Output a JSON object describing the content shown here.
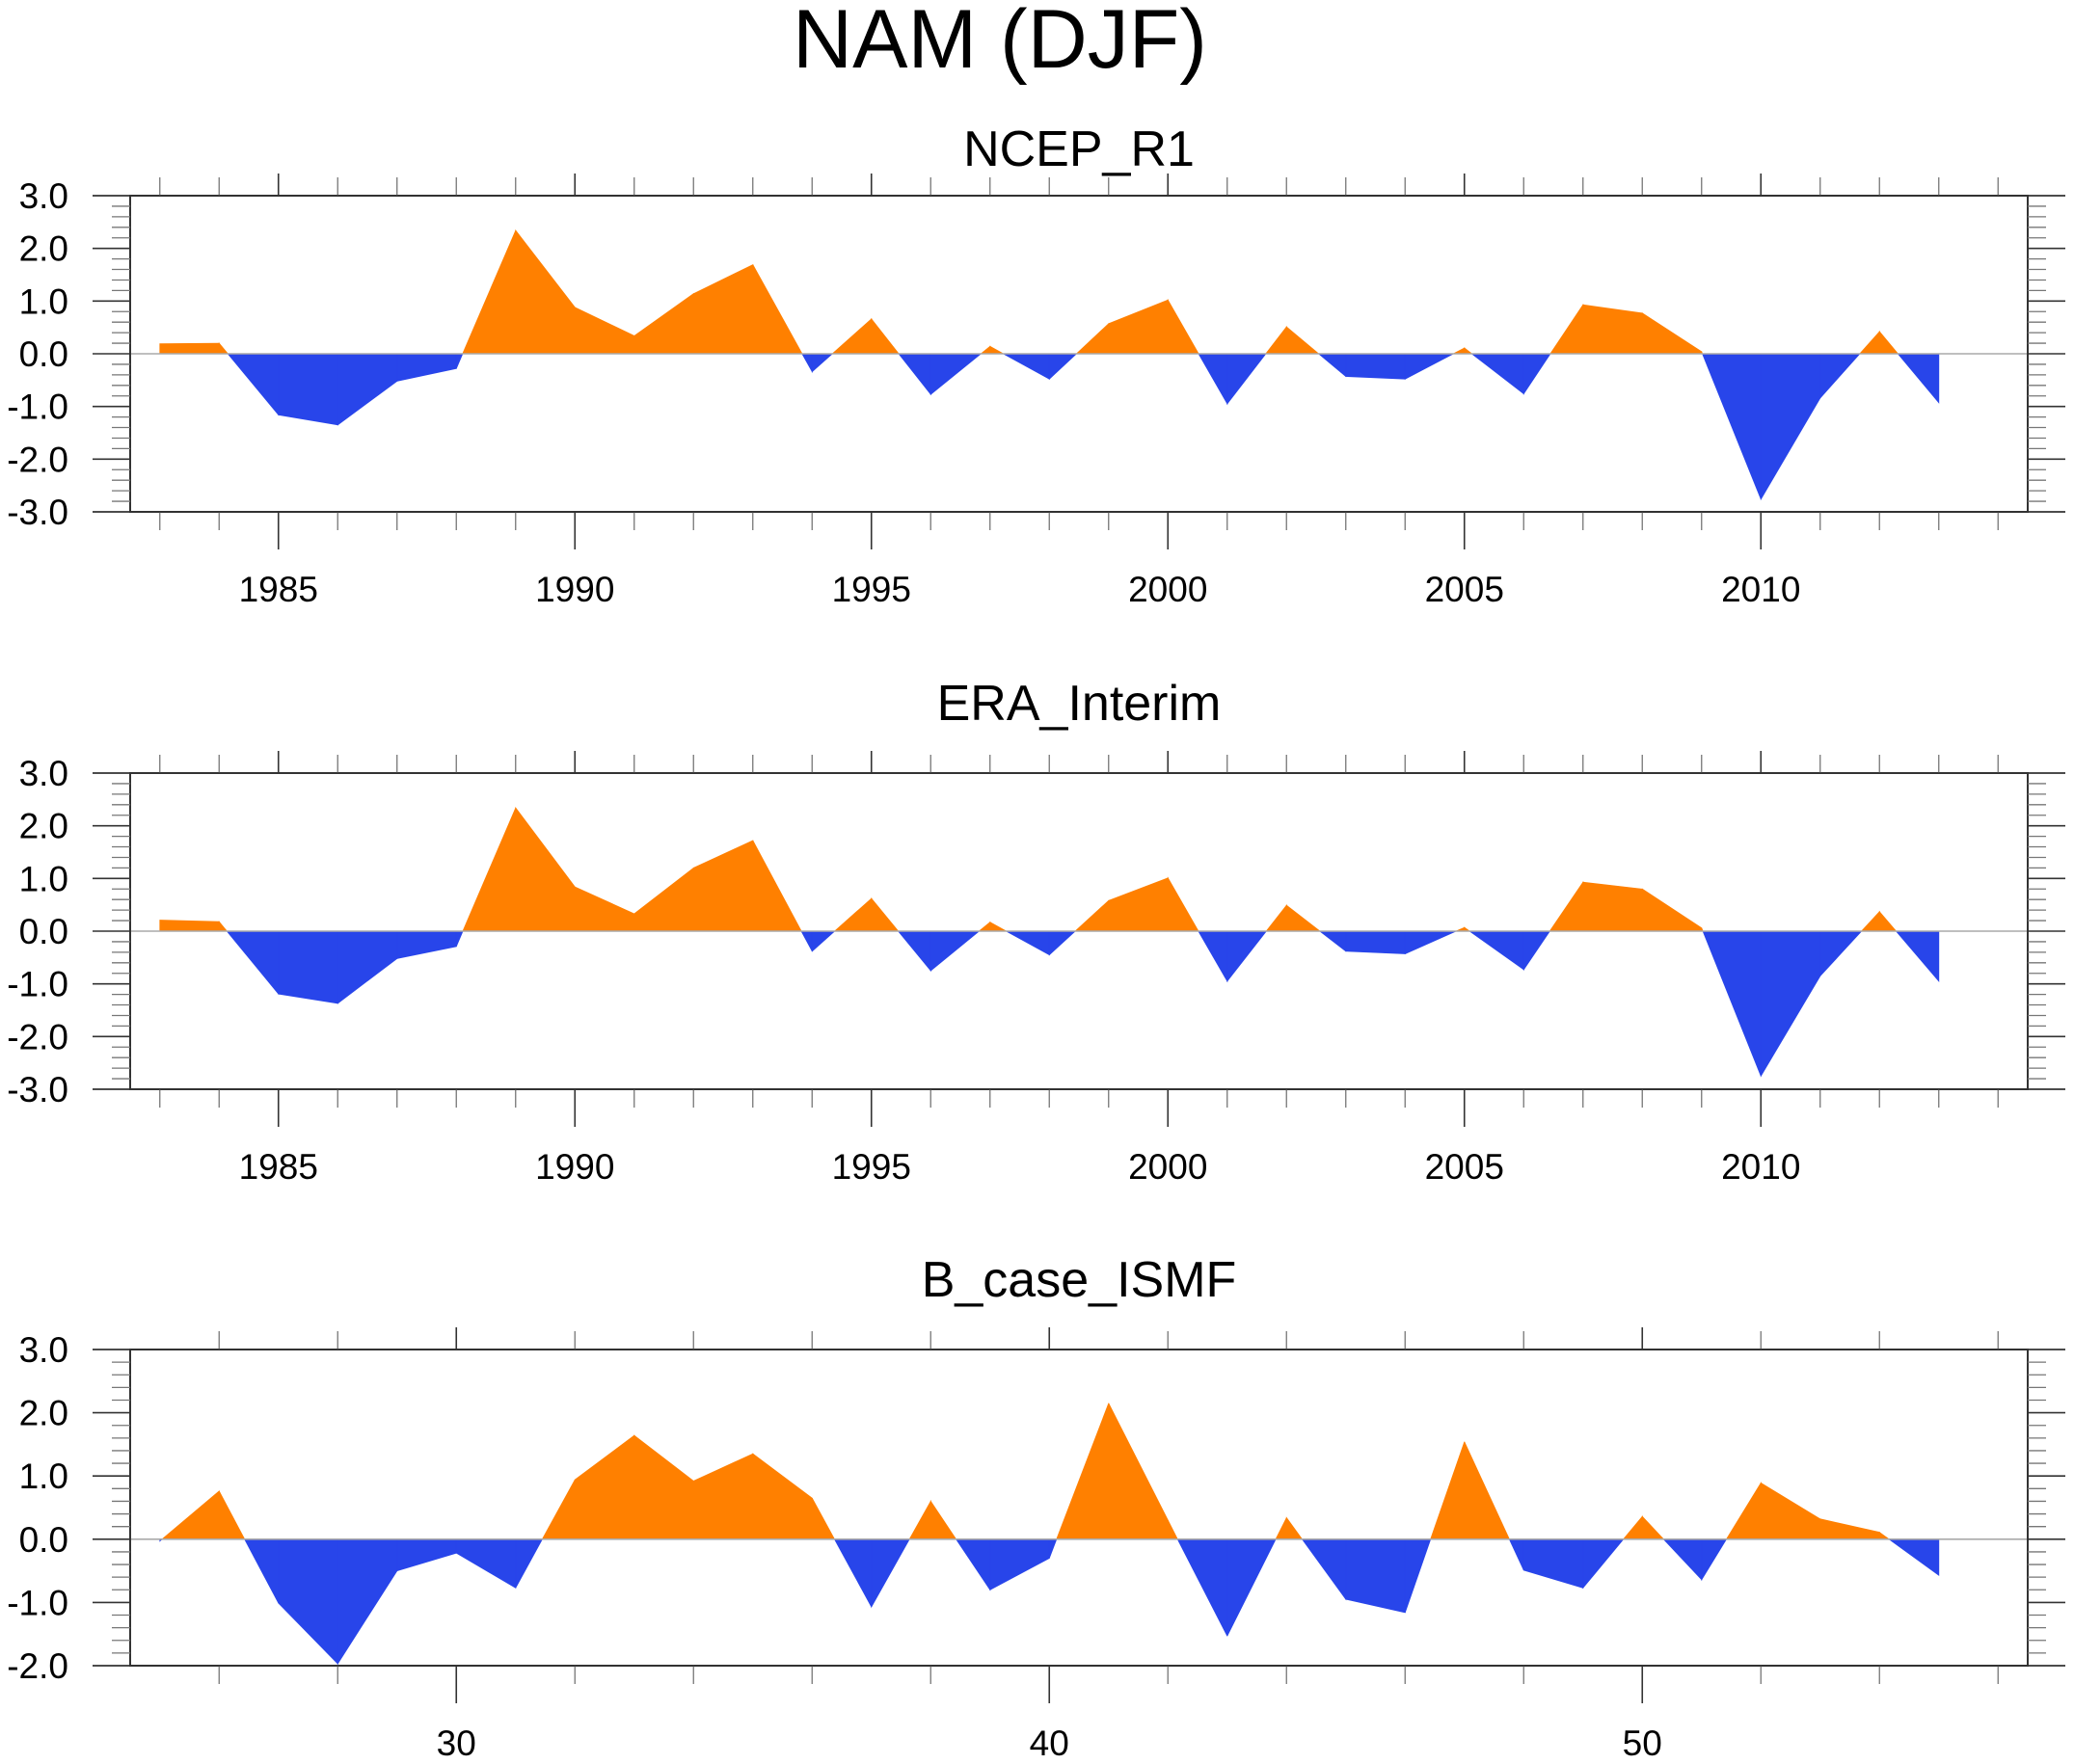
{
  "title": "NAM (DJF)",
  "colors": {
    "positive": "#FF8000",
    "negative": "#2845EA",
    "zero_line": "#AAAAAA",
    "axis": "#333333"
  },
  "chart_data": [
    {
      "type": "area",
      "title": "NCEP_R1",
      "xlabel": "",
      "ylabel": "",
      "xlim": [
        1982.5,
        2014.5
      ],
      "ylim": [
        -3.0,
        3.0
      ],
      "x_major_ticks": [
        1985,
        1990,
        1995,
        2000,
        2005,
        2010
      ],
      "x_tick_labels": [
        "1985",
        "1990",
        "1995",
        "2000",
        "2005",
        "2010"
      ],
      "x_minor_step": 1,
      "y_major_ticks": [
        3.0,
        2.0,
        1.0,
        0.0,
        -1.0,
        -2.0,
        -3.0
      ],
      "y_tick_labels": [
        "3.0",
        "2.0",
        "1.0",
        "0.0",
        "-1.0",
        "-2.0",
        "-3.0"
      ],
      "y_minor_step": 0.2,
      "fill_above_zero": "orange",
      "fill_below_zero": "blue",
      "grid": false,
      "x": [
        1983,
        1984,
        1985,
        1986,
        1987,
        1988,
        1989,
        1990,
        1991,
        1992,
        1993,
        1994,
        1995,
        1996,
        1997,
        1998,
        1999,
        2000,
        2001,
        2002,
        2003,
        2004,
        2005,
        2006,
        2007,
        2008,
        2009,
        2010,
        2011,
        2012,
        2013
      ],
      "values": [
        0.19,
        0.2,
        -1.16,
        -1.35,
        -0.52,
        -0.28,
        2.34,
        0.88,
        0.34,
        1.14,
        1.69,
        -0.34,
        0.66,
        -0.77,
        0.14,
        -0.48,
        0.57,
        1.02,
        -0.95,
        0.51,
        -0.43,
        -0.48,
        0.11,
        -0.76,
        0.93,
        0.77,
        0.04,
        -2.76,
        -0.84,
        0.42,
        -0.93
      ]
    },
    {
      "type": "area",
      "title": "ERA_Interim",
      "xlabel": "",
      "ylabel": "",
      "xlim": [
        1982.5,
        2014.5
      ],
      "ylim": [
        -3.0,
        3.0
      ],
      "x_major_ticks": [
        1985,
        1990,
        1995,
        2000,
        2005,
        2010
      ],
      "x_tick_labels": [
        "1985",
        "1990",
        "1995",
        "2000",
        "2005",
        "2010"
      ],
      "x_minor_step": 1,
      "y_major_ticks": [
        3.0,
        2.0,
        1.0,
        0.0,
        -1.0,
        -2.0,
        -3.0
      ],
      "y_tick_labels": [
        "3.0",
        "2.0",
        "1.0",
        "0.0",
        "-1.0",
        "-2.0",
        "-3.0"
      ],
      "y_minor_step": 0.2,
      "fill_above_zero": "orange",
      "fill_below_zero": "blue",
      "grid": false,
      "x": [
        1983,
        1984,
        1985,
        1986,
        1987,
        1988,
        1989,
        1990,
        1991,
        1992,
        1993,
        1994,
        1995,
        1996,
        1997,
        1998,
        1999,
        2000,
        2001,
        2002,
        2003,
        2004,
        2005,
        2006,
        2007,
        2008,
        2009,
        2010,
        2011,
        2012,
        2013
      ],
      "values": [
        0.21,
        0.18,
        -1.19,
        -1.37,
        -0.52,
        -0.29,
        2.34,
        0.84,
        0.33,
        1.2,
        1.72,
        -0.38,
        0.62,
        -0.75,
        0.17,
        -0.45,
        0.58,
        1.01,
        -0.95,
        0.49,
        -0.38,
        -0.43,
        0.07,
        -0.73,
        0.93,
        0.8,
        0.06,
        -2.75,
        -0.85,
        0.37,
        -0.95
      ]
    },
    {
      "type": "area",
      "title": "B_case_ISMF",
      "xlabel": "",
      "ylabel": "",
      "xlim": [
        24.5,
        56.5
      ],
      "ylim": [
        -2.0,
        3.0
      ],
      "x_major_ticks": [
        30,
        40,
        50
      ],
      "x_tick_labels": [
        "30",
        "40",
        "50"
      ],
      "x_minor_step": 2,
      "y_major_ticks": [
        3.0,
        2.0,
        1.0,
        0.0,
        -1.0,
        -2.0
      ],
      "y_tick_labels": [
        "3.0",
        "2.0",
        "1.0",
        "0.0",
        "-1.0",
        "-2.0"
      ],
      "y_minor_step": 0.2,
      "fill_above_zero": "orange",
      "fill_below_zero": "blue",
      "grid": false,
      "x": [
        25,
        26,
        27,
        28,
        29,
        30,
        31,
        32,
        33,
        34,
        35,
        36,
        37,
        38,
        39,
        40,
        41,
        42,
        43,
        44,
        45,
        46,
        47,
        48,
        49,
        50,
        51,
        52,
        53,
        54,
        55
      ],
      "values": [
        -0.03,
        0.76,
        -1.01,
        -1.97,
        -0.5,
        -0.22,
        -0.77,
        0.94,
        1.64,
        0.92,
        1.35,
        0.65,
        -1.07,
        0.6,
        -0.8,
        -0.3,
        2.15,
        0.3,
        -1.53,
        0.34,
        -0.95,
        -1.16,
        1.54,
        -0.49,
        -0.77,
        0.36,
        -0.64,
        0.89,
        0.32,
        0.11,
        -0.57
      ]
    }
  ]
}
